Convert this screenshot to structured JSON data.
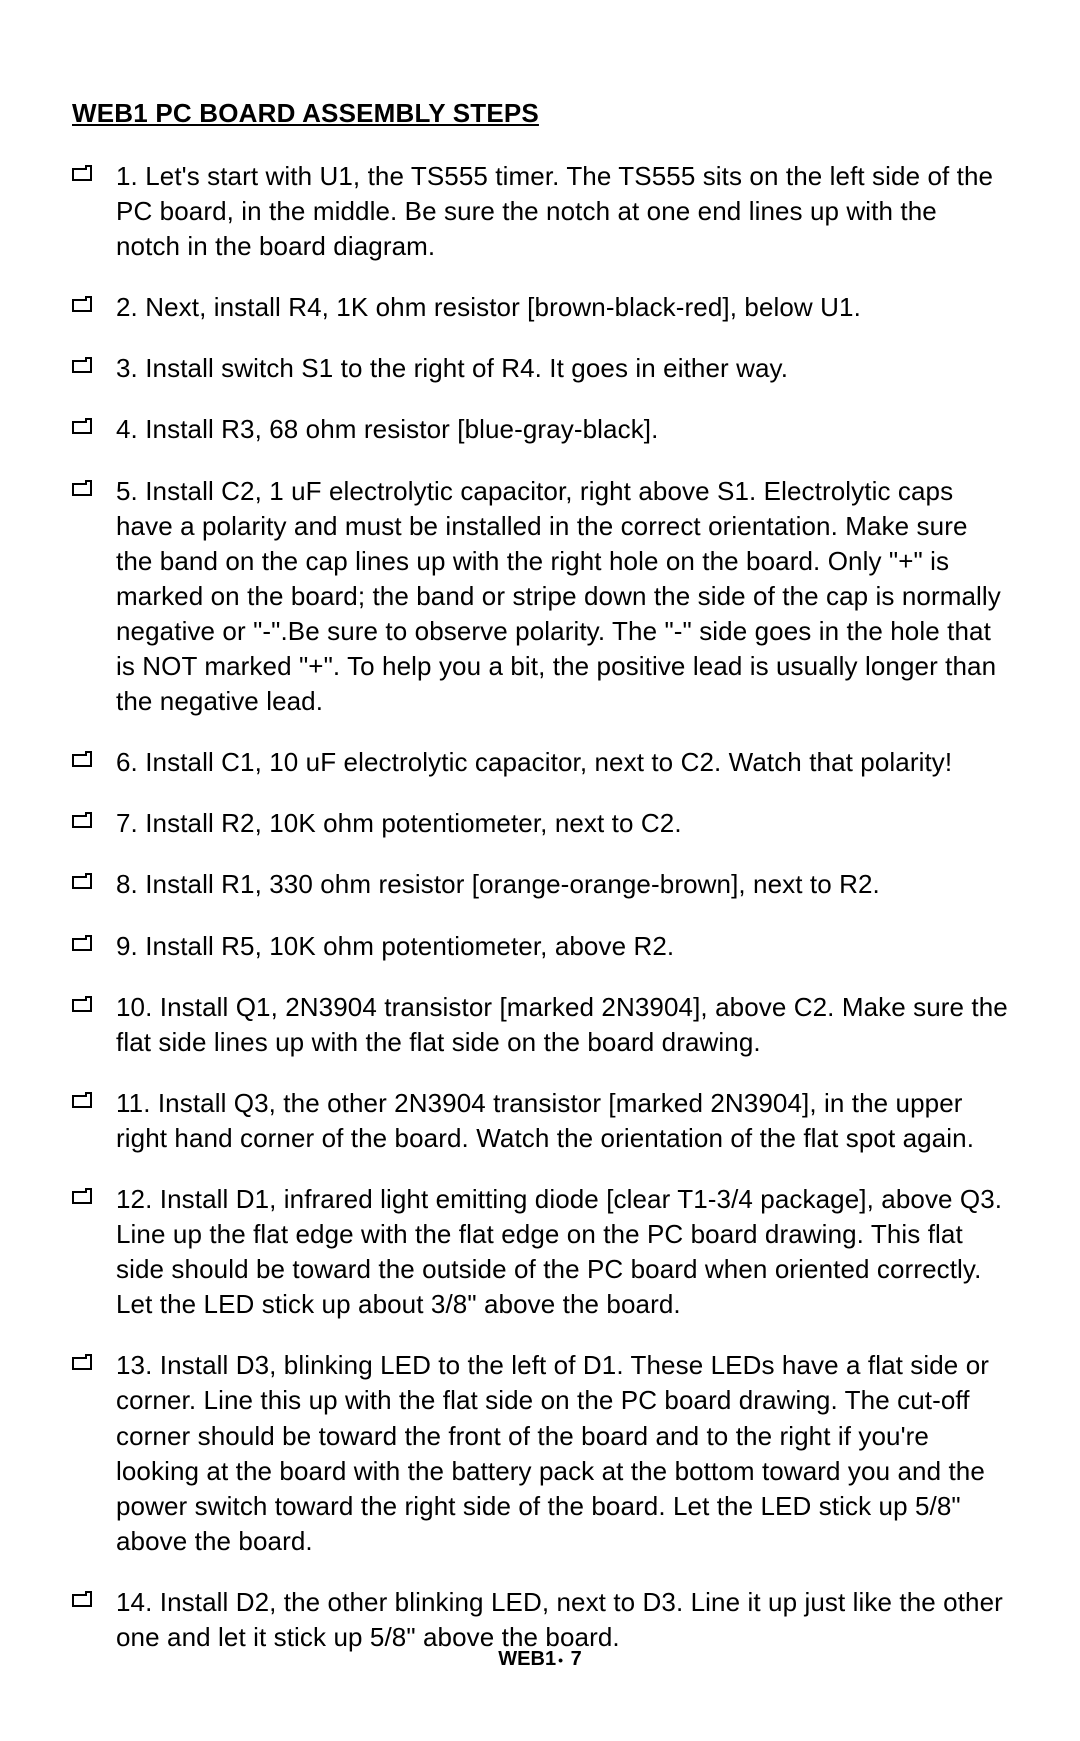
{
  "document": {
    "title": "WEB1 PC BOARD ASSEMBLY STEPS",
    "footer_prefix": "WEB1",
    "footer_bullet": "•",
    "footer_page": "7",
    "text_color": "#000000",
    "background_color": "#ffffff",
    "font_family": "Arial, Helvetica, sans-serif",
    "title_fontsize": 26,
    "body_fontsize": 26,
    "footer_fontsize": 20,
    "checkbox": {
      "width": 20,
      "height": 16,
      "stroke": "#000000",
      "stroke_width": 2,
      "tab_width": 6,
      "tab_height": 3
    },
    "steps": [
      "1. Let's start with U1, the TS555 timer. The TS555 sits on the left side of the PC board, in the middle. Be sure the notch at one end lines up with the notch in the board diagram.",
      "2. Next, install R4, 1K ohm resistor [brown-black-red], below U1.",
      "3. Install switch S1 to the right of R4. It goes in either way.",
      "4. Install R3, 68 ohm resistor [blue-gray-black].",
      "5. Install C2, 1 uF electrolytic capacitor, right above S1. Electrolytic caps have a polarity and must be installed in the correct orientation. Make sure the band on the cap lines up with the right hole on the board. Only \"+\" is marked on the board; the band or stripe down the side of the cap is normally negative or \"-\".Be sure to observe polarity. The \"-\" side goes in the hole that is NOT marked \"+\". To help you a bit, the positive lead is usually longer than the negative lead.",
      "6. Install C1, 10 uF electrolytic capacitor, next to C2. Watch that polarity!",
      "7. Install R2, 10K ohm potentiometer, next to C2.",
      "8. Install  R1, 330 ohm resistor [orange-orange-brown], next to R2.",
      "9. Install R5, 10K ohm potentiometer, above R2.",
      "10. Install Q1, 2N3904 transistor [marked 2N3904], above C2. Make sure the flat side lines up with the flat side on the board drawing.",
      "11. Install Q3, the other 2N3904 transistor [marked 2N3904], in the upper right hand corner of the board. Watch the orientation of the flat spot again.",
      "12. Install D1, infrared light emitting diode [clear T1-3/4 package], above Q3. Line up the flat edge with the flat edge on the PC board drawing. This flat side should be toward the outside of the PC board when oriented correctly. Let the LED stick up about 3/8\" above the board.",
      "13. Install D3, blinking LED to the left of D1. These LEDs have a flat side or corner. Line this up with the flat side on the PC board drawing. The cut-off corner should be toward the front of the board and to the right if you're looking at the board with the battery pack at the bottom toward you and the power switch toward the right side of the board. Let the LED stick up 5/8\" above the board.",
      "14. Install D2, the other blinking LED, next to D3. Line it up just like the other one and let it stick up 5/8\" above the board."
    ]
  }
}
